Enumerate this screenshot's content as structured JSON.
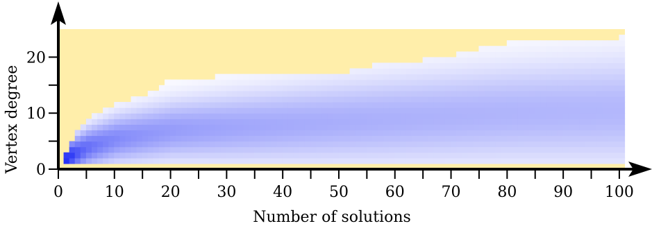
{
  "chart_data": {
    "type": "heatmap",
    "title": "",
    "xlabel": "Number of solutions",
    "ylabel": "Vertex degree",
    "xlim": [
      0,
      101
    ],
    "ylim": [
      0,
      25
    ],
    "x_ticks": [
      0,
      10,
      20,
      30,
      40,
      50,
      60,
      70,
      80,
      90,
      100
    ],
    "y_ticks": [
      0,
      10,
      20
    ],
    "colors": {
      "background": "#ffeeaa",
      "low": "#ffffff",
      "high": "#1f2cf5",
      "axis": "#000000"
    },
    "max_degree_envelope": [
      {
        "solutions": 1,
        "max_degree": 2
      },
      {
        "solutions": 2,
        "max_degree": 4
      },
      {
        "solutions": 3,
        "max_degree": 6
      },
      {
        "solutions": 4,
        "max_degree": 7
      },
      {
        "solutions": 5,
        "max_degree": 8
      },
      {
        "solutions": 6,
        "max_degree": 9
      },
      {
        "solutions": 8,
        "max_degree": 10
      },
      {
        "solutions": 10,
        "max_degree": 11
      },
      {
        "solutions": 13,
        "max_degree": 12
      },
      {
        "solutions": 16,
        "max_degree": 13
      },
      {
        "solutions": 18,
        "max_degree": 14
      },
      {
        "solutions": 19,
        "max_degree": 15
      },
      {
        "solutions": 28,
        "max_degree": 16
      },
      {
        "solutions": 52,
        "max_degree": 17
      },
      {
        "solutions": 56,
        "max_degree": 18
      },
      {
        "solutions": 65,
        "max_degree": 19
      },
      {
        "solutions": 71,
        "max_degree": 20
      },
      {
        "solutions": 75,
        "max_degree": 21
      },
      {
        "solutions": 80,
        "max_degree": 22
      },
      {
        "solutions": 100,
        "max_degree": 23
      }
    ],
    "min_degree": 1,
    "mode_degree_by_solutions": [
      {
        "solutions": 1,
        "degree": 2
      },
      {
        "solutions": 5,
        "degree": 4
      },
      {
        "solutions": 10,
        "degree": 5.5
      },
      {
        "solutions": 20,
        "degree": 7
      },
      {
        "solutions": 40,
        "degree": 8
      },
      {
        "solutions": 60,
        "degree": 9
      },
      {
        "solutions": 80,
        "degree": 10
      },
      {
        "solutions": 100,
        "degree": 10.5
      }
    ]
  }
}
